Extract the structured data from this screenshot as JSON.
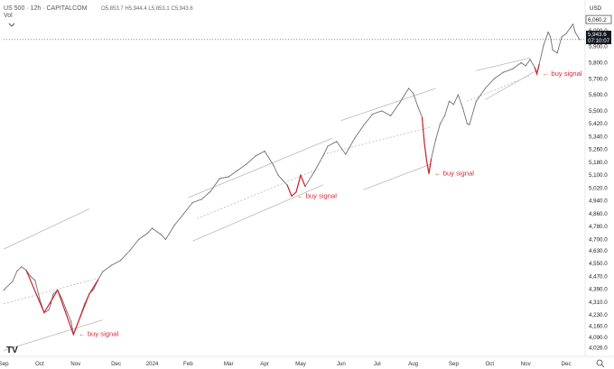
{
  "header": {
    "symbol_line": "US 500 · 12h · CAPITALCOM",
    "ohlc": "O5,853.7 H5,944.4 L5,853.1 C5,943.6",
    "vol_label": "Vol"
  },
  "axis": {
    "currency": "USD",
    "current_price": "5,943.6",
    "countdown": "07:10:07"
  },
  "colors": {
    "price": "#6f6f6f",
    "signal": "#d0212d",
    "channel": "#b9b9b9",
    "current": "#131722"
  },
  "chart_data": {
    "type": "line",
    "title": "US 500 · 12h · CAPITALCOM",
    "xlabel": "",
    "ylabel": "",
    "ylim": [
      3990,
      6100
    ],
    "grid": false,
    "x_ticks": [
      "Sep",
      "Oct",
      "Nov",
      "Dec",
      "2024",
      "Feb",
      "Mar",
      "Apr",
      "May",
      "Jun",
      "Jul",
      "Aug",
      "Sep",
      "Oct",
      "Nov",
      "Dec"
    ],
    "y_ticks": [
      4026.0,
      4090.0,
      4160.0,
      4230.0,
      4310.0,
      4390.0,
      4470.0,
      4550.0,
      4630.0,
      4700.0,
      4780.0,
      4860.0,
      4940.0,
      5020.0,
      5100.0,
      5180.0,
      5260.0,
      5340.0,
      5420.0,
      5500.0,
      5600.0,
      5700.0,
      5800.0,
      5900.0,
      6000.0,
      6060.2
    ],
    "y_tick_labels": [
      "4,026.0",
      "4,090.0",
      "4,160.0",
      "4,230.0",
      "4,310.0",
      "4,390.0",
      "4,470.0",
      "4,550.0",
      "4,630.0",
      "4,700.0",
      "4,780.0",
      "4,860.0",
      "4,940.0",
      "5,020.0",
      "5,100.0",
      "5,180.0",
      "5,260.0",
      "5,340.0",
      "5,420.0",
      "5,500.0",
      "5,600.0",
      "5,700.0",
      "5,800.0",
      "5,900.0",
      "6,000.0",
      "6,060.2"
    ],
    "x_range": [
      2023.67,
      2024.95
    ],
    "series": [
      {
        "values": [
          [
            2023.67,
            4385
          ],
          [
            2023.69,
            4440
          ],
          [
            2023.7,
            4505
          ],
          [
            2023.71,
            4530
          ],
          [
            2023.72,
            4510
          ],
          [
            2023.73,
            4470
          ],
          [
            2023.74,
            4445
          ],
          [
            2023.75,
            4330
          ],
          [
            2023.76,
            4245
          ],
          [
            2023.77,
            4260
          ],
          [
            2023.775,
            4300
          ],
          [
            2023.78,
            4360
          ],
          [
            2023.79,
            4385
          ],
          [
            2023.8,
            4330
          ],
          [
            2023.81,
            4255
          ],
          [
            2023.82,
            4190
          ],
          [
            2023.825,
            4110
          ],
          [
            2023.83,
            4140
          ],
          [
            2023.84,
            4220
          ],
          [
            2023.85,
            4300
          ],
          [
            2023.86,
            4360
          ],
          [
            2023.87,
            4390
          ],
          [
            2023.88,
            4450
          ],
          [
            2023.89,
            4500
          ],
          [
            2023.91,
            4540
          ],
          [
            2023.93,
            4570
          ],
          [
            2023.95,
            4630
          ],
          [
            2023.97,
            4700
          ],
          [
            2023.99,
            4740
          ],
          [
            2024.0,
            4770
          ],
          [
            2024.02,
            4730
          ],
          [
            2024.03,
            4700
          ],
          [
            2024.05,
            4790
          ],
          [
            2024.07,
            4860
          ],
          [
            2024.09,
            4930
          ],
          [
            2024.11,
            4950
          ],
          [
            2024.13,
            5000
          ],
          [
            2024.15,
            5080
          ],
          [
            2024.17,
            5090
          ],
          [
            2024.19,
            5130
          ],
          [
            2024.21,
            5170
          ],
          [
            2024.23,
            5220
          ],
          [
            2024.25,
            5250
          ],
          [
            2024.27,
            5160
          ],
          [
            2024.28,
            5100
          ],
          [
            2024.3,
            5040
          ],
          [
            2024.31,
            4970
          ],
          [
            2024.32,
            4995
          ],
          [
            2024.33,
            5100
          ],
          [
            2024.34,
            5030
          ],
          [
            2024.36,
            5120
          ],
          [
            2024.38,
            5220
          ],
          [
            2024.39,
            5280
          ],
          [
            2024.41,
            5310
          ],
          [
            2024.43,
            5230
          ],
          [
            2024.45,
            5330
          ],
          [
            2024.47,
            5410
          ],
          [
            2024.49,
            5480
          ],
          [
            2024.51,
            5500
          ],
          [
            2024.53,
            5470
          ],
          [
            2024.55,
            5550
          ],
          [
            2024.57,
            5640
          ],
          [
            2024.58,
            5610
          ],
          [
            2024.59,
            5530
          ],
          [
            2024.6,
            5460
          ],
          [
            2024.605,
            5300
          ],
          [
            2024.61,
            5190
          ],
          [
            2024.615,
            5110
          ],
          [
            2024.62,
            5200
          ],
          [
            2024.63,
            5320
          ],
          [
            2024.64,
            5420
          ],
          [
            2024.65,
            5470
          ],
          [
            2024.66,
            5560
          ],
          [
            2024.67,
            5540
          ],
          [
            2024.68,
            5600
          ],
          [
            2024.69,
            5520
          ],
          [
            2024.7,
            5420
          ],
          [
            2024.705,
            5415
          ],
          [
            2024.72,
            5560
          ],
          [
            2024.74,
            5640
          ],
          [
            2024.76,
            5700
          ],
          [
            2024.78,
            5740
          ],
          [
            2024.8,
            5760
          ],
          [
            2024.82,
            5800
          ],
          [
            2024.83,
            5780
          ],
          [
            2024.84,
            5820
          ],
          [
            2024.85,
            5770
          ],
          [
            2024.855,
            5730
          ],
          [
            2024.86,
            5790
          ],
          [
            2024.87,
            5910
          ],
          [
            2024.88,
            5990
          ],
          [
            2024.885,
            5960
          ],
          [
            2024.89,
            5880
          ],
          [
            2024.9,
            5860
          ],
          [
            2024.91,
            5960
          ],
          [
            2024.92,
            5980
          ],
          [
            2024.93,
            6020
          ],
          [
            2024.935,
            6040
          ],
          [
            2024.94,
            5990
          ],
          [
            2024.95,
            5943.6
          ]
        ]
      }
    ],
    "annotations": [
      {
        "text": "← buy signal",
        "x": 2023.825,
        "y": 4110
      },
      {
        "text": "← buy signal",
        "x": 2024.31,
        "y": 4970
      },
      {
        "text": "← buy signal",
        "x": 2024.615,
        "y": 5110
      },
      {
        "text": "← buy signal",
        "x": 2024.855,
        "y": 5730
      }
    ],
    "signal_segments": [
      [
        [
          2023.72,
          4510
        ],
        [
          2023.76,
          4245
        ],
        [
          2023.79,
          4385
        ],
        [
          2023.825,
          4110
        ],
        [
          2023.86,
          4360
        ],
        [
          2023.88,
          4450
        ]
      ],
      [
        [
          2024.3,
          5040
        ],
        [
          2024.31,
          4970
        ],
        [
          2024.32,
          4995
        ],
        [
          2024.33,
          5100
        ],
        [
          2024.34,
          5030
        ]
      ],
      [
        [
          2024.6,
          5460
        ],
        [
          2024.605,
          5300
        ],
        [
          2024.61,
          5190
        ],
        [
          2024.615,
          5110
        ],
        [
          2024.62,
          5200
        ]
      ],
      [
        [
          2024.85,
          5770
        ],
        [
          2024.855,
          5730
        ],
        [
          2024.86,
          5790
        ]
      ]
    ],
    "channel_lines": [
      [
        [
          2023.67,
          4640
        ],
        [
          2023.86,
          4890
        ]
      ],
      [
        [
          2023.67,
          4300
        ],
        [
          2023.88,
          4460
        ]
      ],
      [
        [
          2023.67,
          4010
        ],
        [
          2023.89,
          4200
        ]
      ],
      [
        [
          2024.08,
          4960
        ],
        [
          2024.4,
          5330
        ]
      ],
      [
        [
          2024.1,
          4830
        ],
        [
          2024.37,
          5140
        ]
      ],
      [
        [
          2024.09,
          4690
        ],
        [
          2024.38,
          5040
        ]
      ],
      [
        [
          2024.42,
          5440
        ],
        [
          2024.63,
          5640
        ]
      ],
      [
        [
          2024.38,
          5230
        ],
        [
          2024.62,
          5400
        ]
      ],
      [
        [
          2024.47,
          5010
        ],
        [
          2024.62,
          5170
        ]
      ],
      [
        [
          2024.72,
          5750
        ],
        [
          2024.84,
          5830
        ]
      ],
      [
        [
          2024.7,
          5560
        ],
        [
          2024.84,
          5720
        ]
      ],
      [
        [
          2024.74,
          5570
        ],
        [
          2024.86,
          5760
        ]
      ]
    ],
    "legend": "none"
  }
}
